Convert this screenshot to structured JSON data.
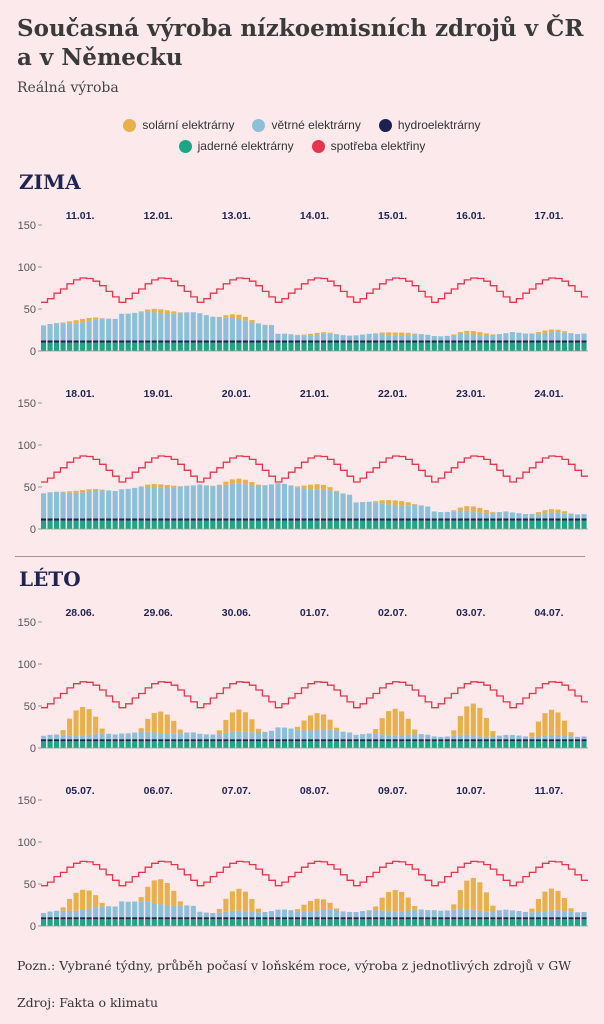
{
  "title": "Současná výroba nízkoemisních zdrojů v ČR a v Německu",
  "subtitle": "Reálná výroba",
  "legend": [
    {
      "label": "solární elektrárny",
      "color": "#e8b04a"
    },
    {
      "label": "větrné elektrárny",
      "color": "#8cbfd8"
    },
    {
      "label": "hydroelektrárny",
      "color": "#1c2152"
    },
    {
      "label": "jaderné elektrárny",
      "color": "#1ea586"
    },
    {
      "label": "spotřeba elektřiny",
      "color": "#e8354c"
    }
  ],
  "seasons": {
    "winter": "ZIMA",
    "summer": "LÉTO"
  },
  "chart_data": [
    {
      "type": "bar",
      "season": "ZIMA",
      "days": [
        "11.01.",
        "12.01.",
        "13.01.",
        "14.01.",
        "15.01.",
        "16.01.",
        "17.01."
      ],
      "yticks": [
        0,
        50,
        100,
        150
      ],
      "ylim": [
        0,
        150
      ],
      "nuclear": 10,
      "hydro": 2.5,
      "wind": [
        18,
        33,
        32,
        7,
        7,
        6,
        9
      ],
      "solar_peak": [
        4,
        5,
        5,
        2,
        4,
        4,
        3
      ],
      "demand": {
        "night": 58,
        "day": 87
      }
    },
    {
      "type": "bar",
      "season": "ZIMA",
      "days": [
        "18.01.",
        "19.01.",
        "20.01.",
        "21.01.",
        "22.01.",
        "23.01.",
        "24.01."
      ],
      "yticks": [
        0,
        50,
        100,
        150
      ],
      "ylim": [
        0,
        150
      ],
      "nuclear": 10,
      "hydro": 2.5,
      "wind": [
        30,
        36,
        40,
        41,
        20,
        9,
        6
      ],
      "solar_peak": [
        3,
        4,
        6,
        6,
        6,
        6,
        4
      ],
      "demand": {
        "night": 56,
        "day": 87
      }
    },
    {
      "type": "bar",
      "season": "LÉTO",
      "days": [
        "28.06.",
        "29.06.",
        "30.06.",
        "01.07.",
        "02.07.",
        "03.07.",
        "04.07."
      ],
      "yticks": [
        0,
        50,
        100,
        150
      ],
      "ylim": [
        0,
        150
      ],
      "nuclear": 8,
      "hydro": 2.5,
      "wind": [
        4,
        8,
        6,
        13,
        6,
        4,
        4
      ],
      "solar_peak": [
        34,
        26,
        26,
        20,
        32,
        38,
        30
      ],
      "demand": {
        "night": 48,
        "day": 79
      }
    },
    {
      "type": "bar",
      "season": "LÉTO",
      "days": [
        "05.07.",
        "06.07.",
        "07.07.",
        "08.07.",
        "09.07.",
        "10.07.",
        "11.07."
      ],
      "yticks": [
        0,
        50,
        100,
        150
      ],
      "ylim": [
        0,
        150
      ],
      "nuclear": 8,
      "hydro": 2.5,
      "wind": [
        5,
        20,
        6,
        8,
        7,
        9,
        7
      ],
      "solar_peak": [
        24,
        30,
        26,
        14,
        26,
        38,
        26
      ],
      "demand": {
        "night": 48,
        "day": 77
      }
    }
  ],
  "note": "Pozn.: Vybrané týdny, průběh počasí v loňském roce, výroba z jednotlivých zdrojů v GW",
  "source": "Zdroj: Fakta o klimatu"
}
